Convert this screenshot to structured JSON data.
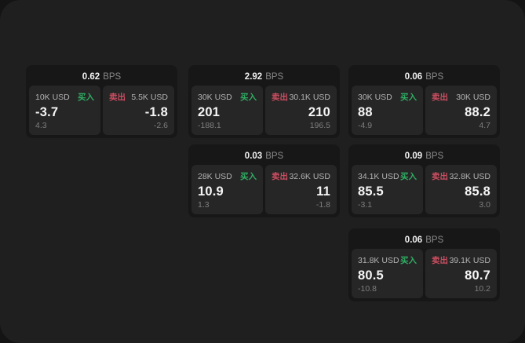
{
  "labels": {
    "buy": "买入",
    "sell": "卖出"
  },
  "colors": {
    "surface": "#1f1f1f",
    "card_bg": "#171717",
    "panel_bg": "#262626",
    "buy_green": "#2fae63",
    "sell_red": "#cc4e61"
  },
  "cards": [
    {
      "col": 1,
      "row": 1,
      "bps_value": "0.62",
      "bps_unit": "BPS",
      "buy": {
        "notional": "10K USD",
        "price": "-3.7",
        "change": "4.3"
      },
      "sell": {
        "notional": "5.5K USD",
        "price": "-1.8",
        "change": "-2.6"
      }
    },
    {
      "col": 2,
      "row": 1,
      "bps_value": "2.92",
      "bps_unit": "BPS",
      "buy": {
        "notional": "30K USD",
        "price": "201",
        "change": "-188.1"
      },
      "sell": {
        "notional": "30.1K USD",
        "price": "210",
        "change": "196.5"
      }
    },
    {
      "col": 3,
      "row": 1,
      "bps_value": "0.06",
      "bps_unit": "BPS",
      "buy": {
        "notional": "30K USD",
        "price": "88",
        "change": "-4.9"
      },
      "sell": {
        "notional": "30K USD",
        "price": "88.2",
        "change": "4.7"
      }
    },
    {
      "col": 2,
      "row": 2,
      "bps_value": "0.03",
      "bps_unit": "BPS",
      "buy": {
        "notional": "28K USD",
        "price": "10.9",
        "change": "1.3"
      },
      "sell": {
        "notional": "32.6K USD",
        "price": "11",
        "change": "-1.8"
      }
    },
    {
      "col": 3,
      "row": 2,
      "bps_value": "0.09",
      "bps_unit": "BPS",
      "buy": {
        "notional": "34.1K USD",
        "price": "85.5",
        "change": "-3.1"
      },
      "sell": {
        "notional": "32.8K USD",
        "price": "85.8",
        "change": "3.0"
      }
    },
    {
      "col": 3,
      "row": 3,
      "bps_value": "0.06",
      "bps_unit": "BPS",
      "buy": {
        "notional": "31.8K USD",
        "price": "80.5",
        "change": "-10.8"
      },
      "sell": {
        "notional": "39.1K USD",
        "price": "80.7",
        "change": "10.2"
      }
    }
  ]
}
